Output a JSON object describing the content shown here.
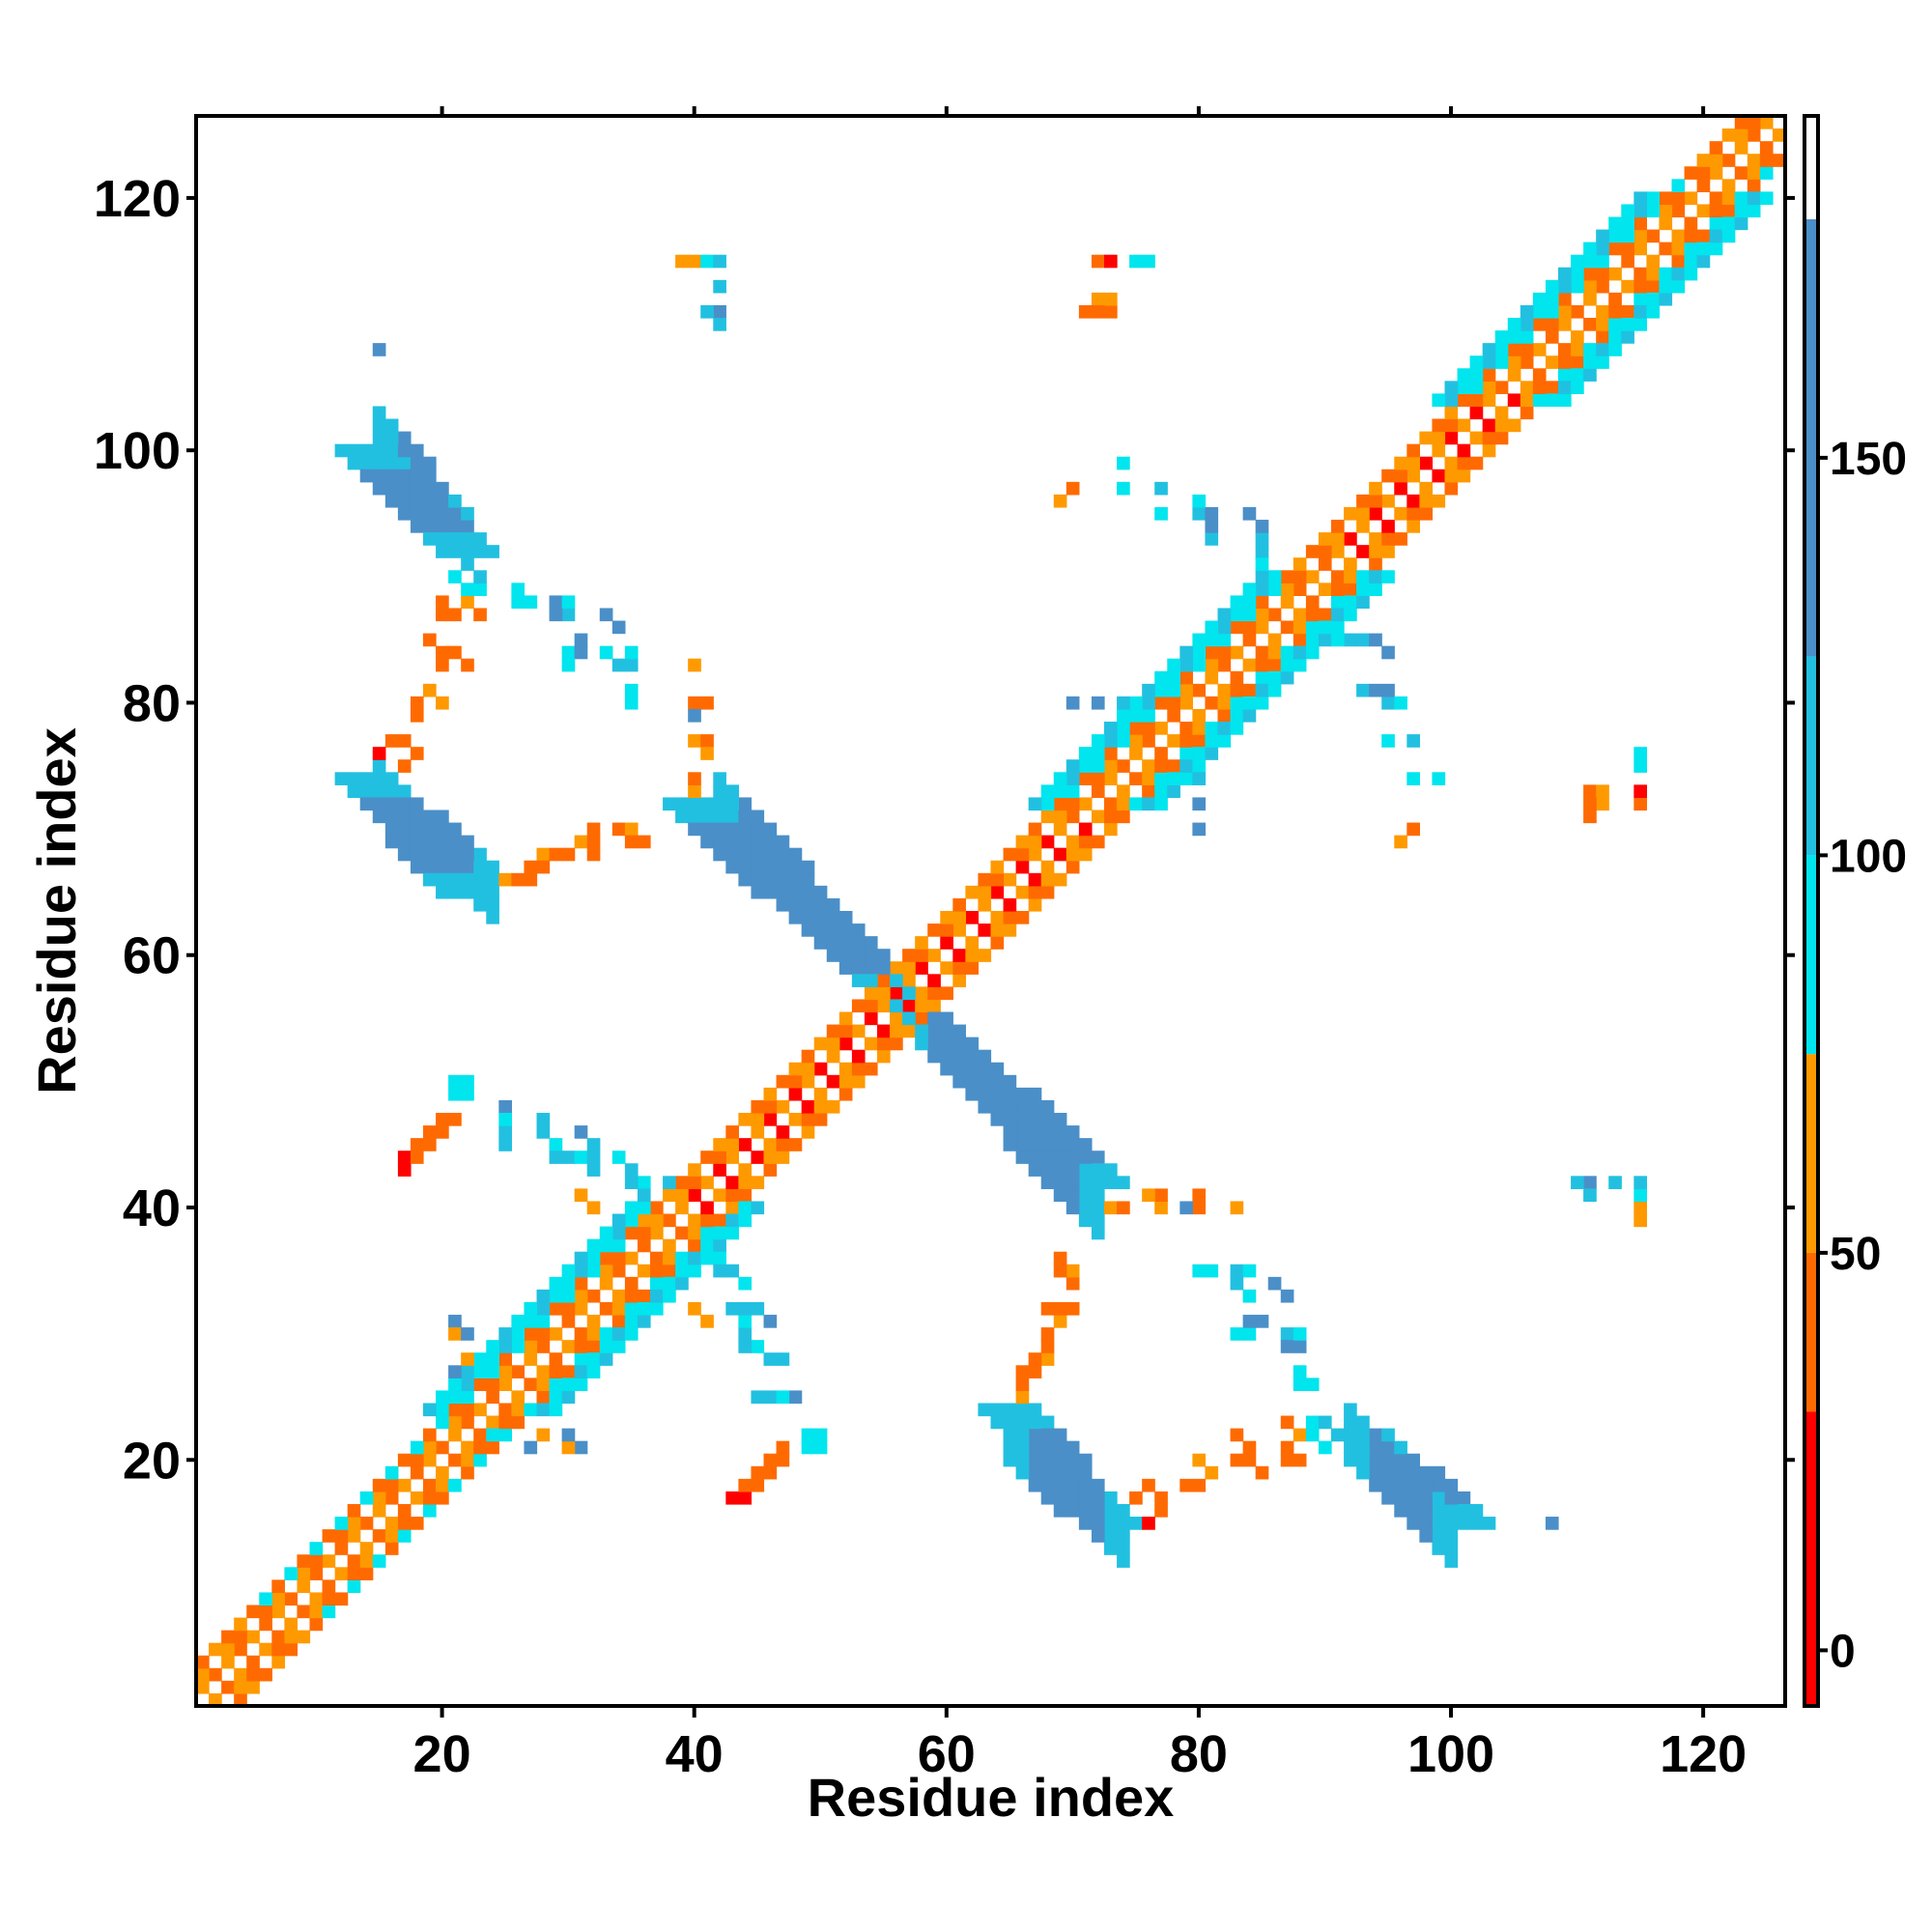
{
  "chart_data": {
    "type": "heatmap",
    "title": "",
    "xlabel": "Residue index",
    "ylabel": "Residue index",
    "xlim": [
      1,
      126
    ],
    "ylim": [
      1,
      126
    ],
    "x_ticks": [
      20,
      40,
      60,
      80,
      100,
      120
    ],
    "y_ticks": [
      20,
      40,
      60,
      80,
      100,
      120
    ],
    "colorbar": {
      "ticks": [
        0,
        50,
        100,
        150
      ],
      "range": [
        -7,
        193
      ],
      "bands": [
        {
          "from": -7,
          "to": 30,
          "color": "#ff0000"
        },
        {
          "from": 30,
          "to": 50,
          "color": "#ff6a00"
        },
        {
          "from": 50,
          "to": 75,
          "color": "#ff9900"
        },
        {
          "from": 75,
          "to": 100,
          "color": "#00e5ee"
        },
        {
          "from": 100,
          "to": 125,
          "color": "#22c0e0"
        },
        {
          "from": 125,
          "to": 180,
          "color": "#4b8fc8"
        },
        {
          "from": 180,
          "to": 193,
          "color": "#ffffff"
        }
      ]
    },
    "grid": false,
    "symmetric": true,
    "value_scale": "contact value (colorbar units)",
    "diagonal": {
      "start": 1,
      "end": 126
    },
    "bands": [
      {
        "kind": "offdiag",
        "from": [
          14,
          100
        ],
        "to": [
          22,
          92
        ],
        "value": 140,
        "width": 2
      },
      {
        "kind": "offdiag",
        "from": [
          14,
          74
        ],
        "to": [
          22,
          65
        ],
        "value": 140,
        "width": 2
      },
      {
        "kind": "offdiag",
        "from": [
          40,
          72
        ],
        "to": [
          56,
          57
        ],
        "value": 140,
        "width": 2
      },
      {
        "kind": "offdiag",
        "from": [
          57,
          56
        ],
        "to": [
          72,
          42
        ],
        "value": 140,
        "width": 2
      },
      {
        "kind": "offdiag",
        "from": [
          65,
          24
        ],
        "to": [
          73,
          15
        ],
        "value": 140,
        "width": 2
      },
      {
        "kind": "offdiag",
        "from": [
          93,
          22
        ],
        "to": [
          101,
          15
        ],
        "value": 140,
        "width": 2
      }
    ],
    "points": [
      {
        "x": 40,
        "y": 115,
        "v": 60
      },
      {
        "x": 41,
        "y": 115,
        "v": 90
      },
      {
        "x": 42,
        "y": 115,
        "v": 110
      },
      {
        "x": 42,
        "y": 111,
        "v": 130
      },
      {
        "x": 42,
        "y": 110,
        "v": 100
      },
      {
        "x": 72,
        "y": 115,
        "v": 40
      },
      {
        "x": 73,
        "y": 115,
        "v": 10
      },
      {
        "x": 75,
        "y": 115,
        "v": 90
      },
      {
        "x": 71,
        "y": 111,
        "v": 40
      },
      {
        "x": 72,
        "y": 112,
        "v": 60
      },
      {
        "x": 73,
        "y": 111,
        "v": 40
      },
      {
        "x": 15,
        "y": 108,
        "v": 130
      },
      {
        "x": 74,
        "y": 99,
        "v": 90
      },
      {
        "x": 69,
        "y": 96,
        "v": 60
      },
      {
        "x": 77,
        "y": 97,
        "v": 110
      },
      {
        "x": 80,
        "y": 95,
        "v": 100
      },
      {
        "x": 81,
        "y": 93,
        "v": 110
      },
      {
        "x": 84,
        "y": 95,
        "v": 130
      },
      {
        "x": 85,
        "y": 93,
        "v": 110
      },
      {
        "x": 85,
        "y": 92,
        "v": 100
      },
      {
        "x": 21,
        "y": 90,
        "v": 90
      },
      {
        "x": 20,
        "y": 88,
        "v": 40
      },
      {
        "x": 22,
        "y": 88,
        "v": 60
      },
      {
        "x": 26,
        "y": 89,
        "v": 90
      },
      {
        "x": 27,
        "y": 88,
        "v": 90
      },
      {
        "x": 29,
        "y": 88,
        "v": 130
      },
      {
        "x": 30,
        "y": 87,
        "v": 110
      },
      {
        "x": 33,
        "y": 87,
        "v": 130
      },
      {
        "x": 19,
        "y": 85,
        "v": 40
      },
      {
        "x": 21,
        "y": 84,
        "v": 40
      },
      {
        "x": 30,
        "y": 84,
        "v": 90
      },
      {
        "x": 31,
        "y": 85,
        "v": 130
      },
      {
        "x": 33,
        "y": 84,
        "v": 90
      },
      {
        "x": 34,
        "y": 83,
        "v": 110
      },
      {
        "x": 35,
        "y": 81,
        "v": 90
      },
      {
        "x": 19,
        "y": 81,
        "v": 60
      },
      {
        "x": 18,
        "y": 80,
        "v": 40
      },
      {
        "x": 40,
        "y": 83,
        "v": 60
      },
      {
        "x": 40,
        "y": 80,
        "v": 40
      },
      {
        "x": 41,
        "y": 80,
        "v": 40
      },
      {
        "x": 40,
        "y": 77,
        "v": 60
      },
      {
        "x": 41,
        "y": 77,
        "v": 40
      },
      {
        "x": 16,
        "y": 77,
        "v": 40
      },
      {
        "x": 17,
        "y": 77,
        "v": 40
      },
      {
        "x": 15,
        "y": 76,
        "v": 10
      },
      {
        "x": 91,
        "y": 85,
        "v": 90
      },
      {
        "x": 92,
        "y": 85,
        "v": 130
      },
      {
        "x": 94,
        "y": 85,
        "v": 130
      },
      {
        "x": 95,
        "y": 84,
        "v": 110
      },
      {
        "x": 94,
        "y": 81,
        "v": 130
      },
      {
        "x": 95,
        "y": 81,
        "v": 130
      },
      {
        "x": 96,
        "y": 80,
        "v": 90
      },
      {
        "x": 72,
        "y": 80,
        "v": 130
      },
      {
        "x": 74,
        "y": 80,
        "v": 110
      },
      {
        "x": 95,
        "y": 77,
        "v": 90
      },
      {
        "x": 97,
        "y": 77,
        "v": 90
      },
      {
        "x": 97,
        "y": 74,
        "v": 90
      },
      {
        "x": 99,
        "y": 74,
        "v": 90
      },
      {
        "x": 115,
        "y": 76,
        "v": 90
      },
      {
        "x": 115,
        "y": 75,
        "v": 100
      },
      {
        "x": 111,
        "y": 73,
        "v": 50
      },
      {
        "x": 112,
        "y": 73,
        "v": 50
      },
      {
        "x": 111,
        "y": 72,
        "v": 40
      },
      {
        "x": 115,
        "y": 73,
        "v": 10
      },
      {
        "x": 115,
        "y": 72,
        "v": 10
      },
      {
        "x": 80,
        "y": 72,
        "v": 130
      },
      {
        "x": 80,
        "y": 70,
        "v": 130
      },
      {
        "x": 97,
        "y": 70,
        "v": 40
      },
      {
        "x": 96,
        "y": 69,
        "v": 60
      },
      {
        "x": 76,
        "y": 73,
        "v": 100
      },
      {
        "x": 77,
        "y": 72,
        "v": 110
      },
      {
        "x": 23,
        "y": 67,
        "v": 40
      },
      {
        "x": 24,
        "y": 66,
        "v": 40
      },
      {
        "x": 25,
        "y": 66,
        "v": 60
      },
      {
        "x": 27,
        "y": 67,
        "v": 40
      },
      {
        "x": 28,
        "y": 68,
        "v": 60
      },
      {
        "x": 30,
        "y": 68,
        "v": 40
      },
      {
        "x": 31,
        "y": 69,
        "v": 60
      },
      {
        "x": 34,
        "y": 70,
        "v": 40
      },
      {
        "x": 35,
        "y": 70,
        "v": 60
      },
      {
        "x": 39,
        "y": 72,
        "v": 60
      },
      {
        "x": 40,
        "y": 73,
        "v": 60
      },
      {
        "x": 21,
        "y": 50,
        "v": 90
      },
      {
        "x": 22,
        "y": 50,
        "v": 90
      },
      {
        "x": 20,
        "y": 47,
        "v": 40
      },
      {
        "x": 19,
        "y": 46,
        "v": 40
      },
      {
        "x": 18,
        "y": 45,
        "v": 40
      },
      {
        "x": 17,
        "y": 44,
        "v": 10
      },
      {
        "x": 17,
        "y": 43,
        "v": 10
      },
      {
        "x": 25,
        "y": 48,
        "v": 130
      },
      {
        "x": 25,
        "y": 46,
        "v": 110
      },
      {
        "x": 28,
        "y": 47,
        "v": 110
      },
      {
        "x": 28,
        "y": 46,
        "v": 110
      },
      {
        "x": 29,
        "y": 45,
        "v": 90
      },
      {
        "x": 30,
        "y": 44,
        "v": 110
      },
      {
        "x": 31,
        "y": 46,
        "v": 130
      },
      {
        "x": 31,
        "y": 44,
        "v": 90
      },
      {
        "x": 32,
        "y": 44,
        "v": 110
      },
      {
        "x": 31,
        "y": 41,
        "v": 60
      },
      {
        "x": 34,
        "y": 44,
        "v": 90
      },
      {
        "x": 35,
        "y": 43,
        "v": 110
      },
      {
        "x": 36,
        "y": 42,
        "v": 90
      },
      {
        "x": 38,
        "y": 42,
        "v": 110
      },
      {
        "x": 73,
        "y": 40,
        "v": 90
      },
      {
        "x": 74,
        "y": 40,
        "v": 40
      },
      {
        "x": 76,
        "y": 41,
        "v": 60
      },
      {
        "x": 77,
        "y": 40,
        "v": 60
      },
      {
        "x": 79,
        "y": 40,
        "v": 130
      },
      {
        "x": 80,
        "y": 41,
        "v": 60
      },
      {
        "x": 83,
        "y": 40,
        "v": 40
      },
      {
        "x": 72,
        "y": 39,
        "v": 60
      },
      {
        "x": 110,
        "y": 42,
        "v": 110
      },
      {
        "x": 111,
        "y": 41,
        "v": 110
      },
      {
        "x": 113,
        "y": 42,
        "v": 110
      },
      {
        "x": 115,
        "y": 42,
        "v": 90
      },
      {
        "x": 115,
        "y": 40,
        "v": 90
      },
      {
        "x": 115,
        "y": 39,
        "v": 60
      },
      {
        "x": 69,
        "y": 36,
        "v": 40
      },
      {
        "x": 69,
        "y": 35,
        "v": 40
      },
      {
        "x": 80,
        "y": 35,
        "v": 90
      },
      {
        "x": 83,
        "y": 35,
        "v": 110
      },
      {
        "x": 84,
        "y": 35,
        "v": 90
      },
      {
        "x": 83,
        "y": 34,
        "v": 90
      },
      {
        "x": 86,
        "y": 34,
        "v": 130
      },
      {
        "x": 68,
        "y": 32,
        "v": 40
      },
      {
        "x": 69,
        "y": 32,
        "v": 40
      },
      {
        "x": 70,
        "y": 32,
        "v": 40
      },
      {
        "x": 84,
        "y": 31,
        "v": 130
      },
      {
        "x": 83,
        "y": 30,
        "v": 90
      },
      {
        "x": 84,
        "y": 30,
        "v": 90
      },
      {
        "x": 87,
        "y": 30,
        "v": 90
      },
      {
        "x": 88,
        "y": 30,
        "v": 90
      },
      {
        "x": 87,
        "y": 29,
        "v": 130
      },
      {
        "x": 68,
        "y": 29,
        "v": 40
      },
      {
        "x": 67,
        "y": 28,
        "v": 40
      },
      {
        "x": 66,
        "y": 27,
        "v": 40
      },
      {
        "x": 66,
        "y": 26,
        "v": 40
      },
      {
        "x": 88,
        "y": 27,
        "v": 110
      },
      {
        "x": 88,
        "y": 26,
        "v": 90
      },
      {
        "x": 89,
        "y": 26,
        "v": 90
      },
      {
        "x": 41,
        "y": 36,
        "v": 110
      },
      {
        "x": 42,
        "y": 36,
        "v": 110
      },
      {
        "x": 42,
        "y": 35,
        "v": 110
      },
      {
        "x": 40,
        "y": 32,
        "v": 60
      },
      {
        "x": 43,
        "y": 32,
        "v": 110
      },
      {
        "x": 44,
        "y": 32,
        "v": 90
      },
      {
        "x": 45,
        "y": 32,
        "v": 110
      },
      {
        "x": 44,
        "y": 29,
        "v": 110
      },
      {
        "x": 45,
        "y": 29,
        "v": 110
      },
      {
        "x": 46,
        "y": 28,
        "v": 110
      },
      {
        "x": 45,
        "y": 25,
        "v": 110
      },
      {
        "x": 47,
        "y": 25,
        "v": 90
      },
      {
        "x": 49,
        "y": 22,
        "v": 90
      },
      {
        "x": 49,
        "y": 21,
        "v": 90
      },
      {
        "x": 47,
        "y": 21,
        "v": 40
      },
      {
        "x": 46,
        "y": 20,
        "v": 40
      },
      {
        "x": 45,
        "y": 19,
        "v": 40
      },
      {
        "x": 44,
        "y": 18,
        "v": 40
      },
      {
        "x": 43,
        "y": 17,
        "v": 40
      },
      {
        "x": 76,
        "y": 18,
        "v": 40
      },
      {
        "x": 75,
        "y": 17,
        "v": 40
      },
      {
        "x": 79,
        "y": 18,
        "v": 40
      },
      {
        "x": 80,
        "y": 18,
        "v": 40
      },
      {
        "x": 80,
        "y": 20,
        "v": 60
      },
      {
        "x": 83,
        "y": 20,
        "v": 40
      },
      {
        "x": 84,
        "y": 20,
        "v": 40
      },
      {
        "x": 83,
        "y": 22,
        "v": 40
      },
      {
        "x": 87,
        "y": 20,
        "v": 40
      },
      {
        "x": 87,
        "y": 21,
        "v": 40
      },
      {
        "x": 87,
        "y": 23,
        "v": 40
      },
      {
        "x": 89,
        "y": 23,
        "v": 90
      },
      {
        "x": 90,
        "y": 23,
        "v": 110
      },
      {
        "x": 89,
        "y": 22,
        "v": 90
      },
      {
        "x": 108,
        "y": 15,
        "v": 110
      },
      {
        "x": 21,
        "y": 31,
        "v": 130
      },
      {
        "x": 21,
        "y": 30,
        "v": 60
      },
      {
        "x": 22,
        "y": 24,
        "v": 90
      },
      {
        "x": 26,
        "y": 24,
        "v": 110
      },
      {
        "x": 27,
        "y": 21,
        "v": 130
      },
      {
        "x": 30,
        "y": 22,
        "v": 130
      },
      {
        "x": 28,
        "y": 22,
        "v": 60
      }
    ]
  }
}
